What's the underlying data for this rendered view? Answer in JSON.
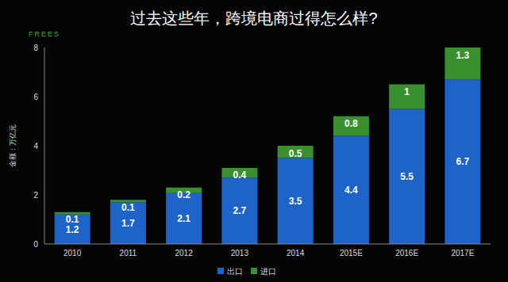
{
  "chart_data": {
    "type": "bar",
    "title": "过去这些年，跨境电商过得怎么样?",
    "subtitle": "FREES",
    "y_label": "金额：万亿元",
    "categories": [
      "2010",
      "2011",
      "2012",
      "2013",
      "2014",
      "2015E",
      "2016E",
      "2017E"
    ],
    "series": [
      {
        "name": "出口",
        "color": "#1e64c8",
        "values": [
          1.2,
          1.7,
          2.1,
          2.7,
          3.5,
          4.4,
          5.5,
          6.7
        ]
      },
      {
        "name": "进口",
        "color": "#3a8f2e",
        "values": [
          0.1,
          0.1,
          0.2,
          0.4,
          0.5,
          0.8,
          1,
          1.3
        ]
      }
    ],
    "ylim": [
      0,
      8
    ],
    "yticks": [
      0,
      2,
      4,
      6,
      8
    ],
    "stacked": true,
    "data_labels": true,
    "grid": false,
    "legend": "bottom"
  }
}
